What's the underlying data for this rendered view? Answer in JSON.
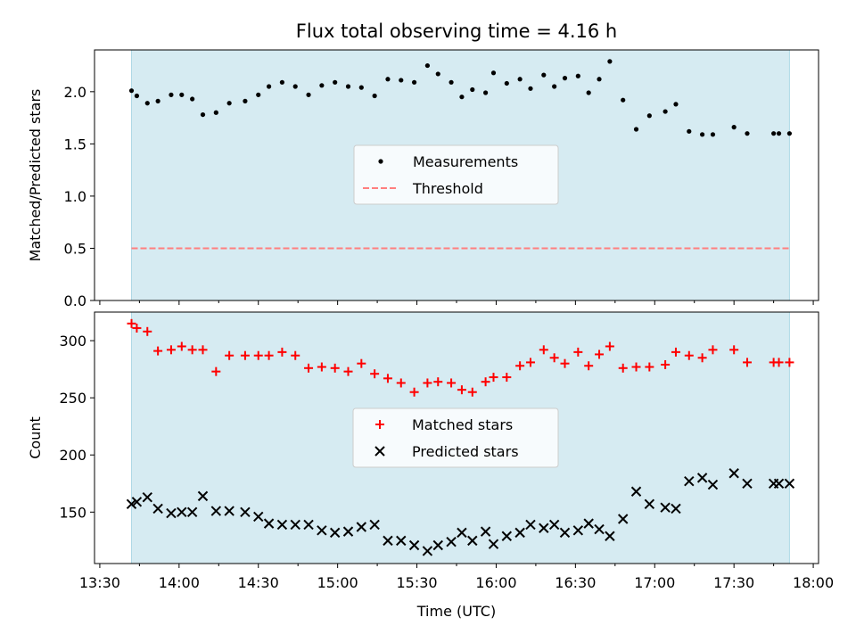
{
  "figure": {
    "title": "Flux total observing time = 4.16 h",
    "xlabel": "Time (UTC)",
    "x_tick_labels": [
      "13:30",
      "14:00",
      "14:30",
      "15:00",
      "15:30",
      "16:00",
      "16:30",
      "17:00",
      "17:30",
      "18:00"
    ]
  },
  "colors": {
    "shade": "#add8e6",
    "measurement": "#000000",
    "threshold": "#ff7f7f",
    "matched": "#ff0000",
    "predicted": "#000000"
  },
  "chart_data": [
    {
      "type": "scatter",
      "panel": "top",
      "ylabel": "Matched/Predicted stars",
      "ylim": [
        0,
        2.4
      ],
      "xlim": [
        "13:28",
        "18:02"
      ],
      "y_ticks": [
        0.0,
        0.5,
        1.0,
        1.5,
        2.0
      ],
      "y_tick_labels": [
        "0.0",
        "0.5",
        "1.0",
        "1.5",
        "2.0"
      ],
      "shaded_span": [
        "13:42",
        "17:51"
      ],
      "legend": {
        "placement": "center",
        "entries": [
          "Measurements",
          "Threshold"
        ]
      },
      "threshold": {
        "name": "Threshold",
        "value": 0.5,
        "style": "dashed",
        "x_range": [
          "13:42",
          "17:51"
        ]
      },
      "series": [
        {
          "name": "Measurements",
          "marker": "dot",
          "x": [
            "13:42",
            "13:44",
            "13:48",
            "13:52",
            "13:57",
            "14:01",
            "14:05",
            "14:09",
            "14:14",
            "14:19",
            "14:25",
            "14:30",
            "14:34",
            "14:39",
            "14:44",
            "14:49",
            "14:54",
            "14:59",
            "15:04",
            "15:09",
            "15:14",
            "15:19",
            "15:24",
            "15:29",
            "15:34",
            "15:38",
            "15:43",
            "15:47",
            "15:51",
            "15:56",
            "15:59",
            "16:04",
            "16:09",
            "16:13",
            "16:18",
            "16:22",
            "16:26",
            "16:31",
            "16:35",
            "16:39",
            "16:43",
            "16:48",
            "16:53",
            "16:58",
            "17:04",
            "17:08",
            "17:13",
            "17:18",
            "17:22",
            "17:30",
            "17:35",
            "17:45",
            "17:47",
            "17:51"
          ],
          "y": [
            2.01,
            1.96,
            1.89,
            1.91,
            1.97,
            1.97,
            1.93,
            1.78,
            1.8,
            1.89,
            1.91,
            1.97,
            2.05,
            2.09,
            2.05,
            1.97,
            2.06,
            2.09,
            2.05,
            2.04,
            1.96,
            2.12,
            2.11,
            2.09,
            2.25,
            2.17,
            2.09,
            1.95,
            2.02,
            1.99,
            2.18,
            2.08,
            2.12,
            2.03,
            2.16,
            2.05,
            2.13,
            2.15,
            1.99,
            2.12,
            2.29,
            1.92,
            1.64,
            1.77,
            1.81,
            1.88,
            1.62,
            1.59,
            1.59,
            1.66,
            1.6,
            1.6,
            1.6,
            1.6
          ]
        }
      ]
    },
    {
      "type": "scatter",
      "panel": "bottom",
      "ylabel": "Count",
      "ylim": [
        105,
        325
      ],
      "xlim": [
        "13:28",
        "18:02"
      ],
      "y_ticks": [
        150,
        200,
        250,
        300
      ],
      "y_tick_labels": [
        "150",
        "200",
        "250",
        "300"
      ],
      "shaded_span": [
        "13:42",
        "17:51"
      ],
      "legend": {
        "placement": "center",
        "entries": [
          "Matched stars",
          "Predicted stars"
        ]
      },
      "series": [
        {
          "name": "Matched stars",
          "marker": "plus",
          "x": [
            "13:42",
            "13:44",
            "13:48",
            "13:52",
            "13:57",
            "14:01",
            "14:05",
            "14:09",
            "14:14",
            "14:19",
            "14:25",
            "14:30",
            "14:34",
            "14:39",
            "14:44",
            "14:49",
            "14:54",
            "14:59",
            "15:04",
            "15:09",
            "15:14",
            "15:19",
            "15:24",
            "15:29",
            "15:34",
            "15:38",
            "15:43",
            "15:47",
            "15:51",
            "15:56",
            "15:59",
            "16:04",
            "16:09",
            "16:13",
            "16:18",
            "16:22",
            "16:26",
            "16:31",
            "16:35",
            "16:39",
            "16:43",
            "16:48",
            "16:53",
            "16:58",
            "17:04",
            "17:08",
            "17:13",
            "17:18",
            "17:22",
            "17:30",
            "17:35",
            "17:45",
            "17:47",
            "17:51"
          ],
          "y": [
            315,
            311,
            308,
            291,
            292,
            295,
            292,
            292,
            273,
            287,
            287,
            287,
            287,
            290,
            287,
            276,
            277,
            276,
            273,
            280,
            271,
            267,
            263,
            255,
            263,
            264,
            263,
            257,
            255,
            264,
            268,
            268,
            278,
            281,
            292,
            285,
            280,
            290,
            278,
            288,
            295,
            276,
            277,
            277,
            279,
            290,
            287,
            285,
            292,
            292,
            281,
            281,
            281,
            281
          ]
        },
        {
          "name": "Predicted stars",
          "marker": "x",
          "x": [
            "13:42",
            "13:44",
            "13:48",
            "13:52",
            "13:57",
            "14:01",
            "14:05",
            "14:09",
            "14:14",
            "14:19",
            "14:25",
            "14:30",
            "14:34",
            "14:39",
            "14:44",
            "14:49",
            "14:54",
            "14:59",
            "15:04",
            "15:09",
            "15:14",
            "15:19",
            "15:24",
            "15:29",
            "15:34",
            "15:38",
            "15:43",
            "15:47",
            "15:51",
            "15:56",
            "15:59",
            "16:04",
            "16:09",
            "16:13",
            "16:18",
            "16:22",
            "16:26",
            "16:31",
            "16:35",
            "16:39",
            "16:43",
            "16:48",
            "16:53",
            "16:58",
            "17:04",
            "17:08",
            "17:13",
            "17:18",
            "17:22",
            "17:30",
            "17:35",
            "17:45",
            "17:47",
            "17:51"
          ],
          "y": [
            157,
            159,
            163,
            153,
            149,
            150,
            150,
            164,
            151,
            151,
            150,
            146,
            140,
            139,
            139,
            139,
            134,
            132,
            133,
            137,
            139,
            125,
            125,
            121,
            116,
            121,
            124,
            132,
            125,
            133,
            122,
            129,
            132,
            139,
            136,
            139,
            132,
            134,
            140,
            135,
            129,
            144,
            168,
            157,
            154,
            153,
            177,
            180,
            174,
            184,
            175,
            175,
            175,
            175
          ]
        }
      ]
    }
  ]
}
